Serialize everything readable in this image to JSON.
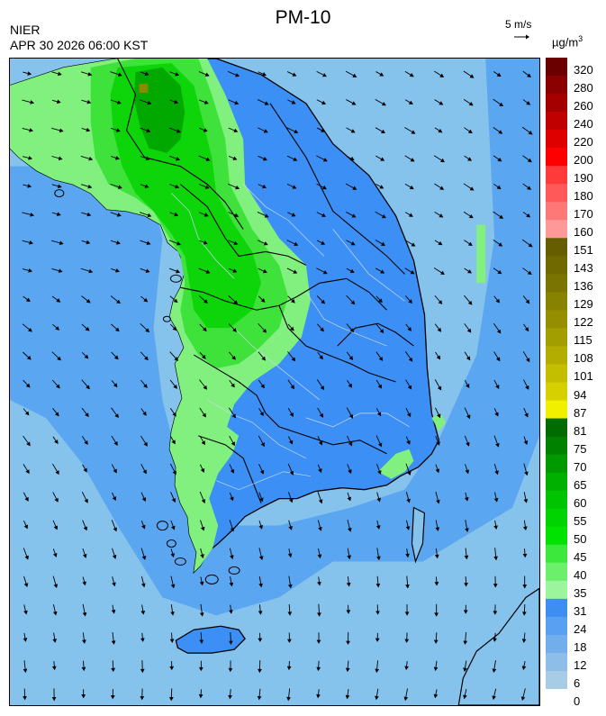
{
  "header": {
    "title": "PM-10",
    "agency": "NIER",
    "timestamp": "APR 30 2026 06:00 KST",
    "wind_scale_label": "5 m/s",
    "unit_base": "µg/m",
    "unit_exp": "3"
  },
  "colors": {
    "sea_light": "#85c2ec",
    "sea_mid": "#5aa6f0",
    "land_blue": "#3b8ff5",
    "green_light": "#82f07e",
    "green_mid": "#3fe23a",
    "green_bright": "#0ed40a",
    "olive": "#8a8a00"
  },
  "legend": {
    "bins": [
      {
        "label": "320",
        "color": "#6b0000"
      },
      {
        "label": "280",
        "color": "#8b0000"
      },
      {
        "label": "260",
        "color": "#a50000"
      },
      {
        "label": "240",
        "color": "#c00000"
      },
      {
        "label": "220",
        "color": "#de0000"
      },
      {
        "label": "200",
        "color": "#ff0000"
      },
      {
        "label": "190",
        "color": "#ff3a3a"
      },
      {
        "label": "180",
        "color": "#ff5a5a"
      },
      {
        "label": "170",
        "color": "#ff7878"
      },
      {
        "label": "160",
        "color": "#ff9898"
      },
      {
        "label": "151",
        "color": "#655d00"
      },
      {
        "label": "143",
        "color": "#6f6900"
      },
      {
        "label": "136",
        "color": "#7a7500"
      },
      {
        "label": "129",
        "color": "#878200"
      },
      {
        "label": "122",
        "color": "#958f00"
      },
      {
        "label": "115",
        "color": "#a39e00"
      },
      {
        "label": "108",
        "color": "#b3ad00"
      },
      {
        "label": "101",
        "color": "#c4be00"
      },
      {
        "label": "94",
        "color": "#d6d000"
      },
      {
        "label": "87",
        "color": "#f0f000"
      },
      {
        "label": "81",
        "color": "#006c00"
      },
      {
        "label": "75",
        "color": "#008200"
      },
      {
        "label": "70",
        "color": "#009a00"
      },
      {
        "label": "65",
        "color": "#00b000"
      },
      {
        "label": "60",
        "color": "#00c400"
      },
      {
        "label": "55",
        "color": "#00d400"
      },
      {
        "label": "50",
        "color": "#00e300"
      },
      {
        "label": "45",
        "color": "#3ce83c"
      },
      {
        "label": "40",
        "color": "#6cf06c"
      },
      {
        "label": "35",
        "color": "#9cf49c"
      },
      {
        "label": "31",
        "color": "#3e8ef2"
      },
      {
        "label": "24",
        "color": "#5aa0f0"
      },
      {
        "label": "18",
        "color": "#72aeec"
      },
      {
        "label": "12",
        "color": "#8cbee8"
      },
      {
        "label": "6",
        "color": "#a6cce6"
      },
      {
        "label": "0",
        "color": ""
      }
    ]
  }
}
